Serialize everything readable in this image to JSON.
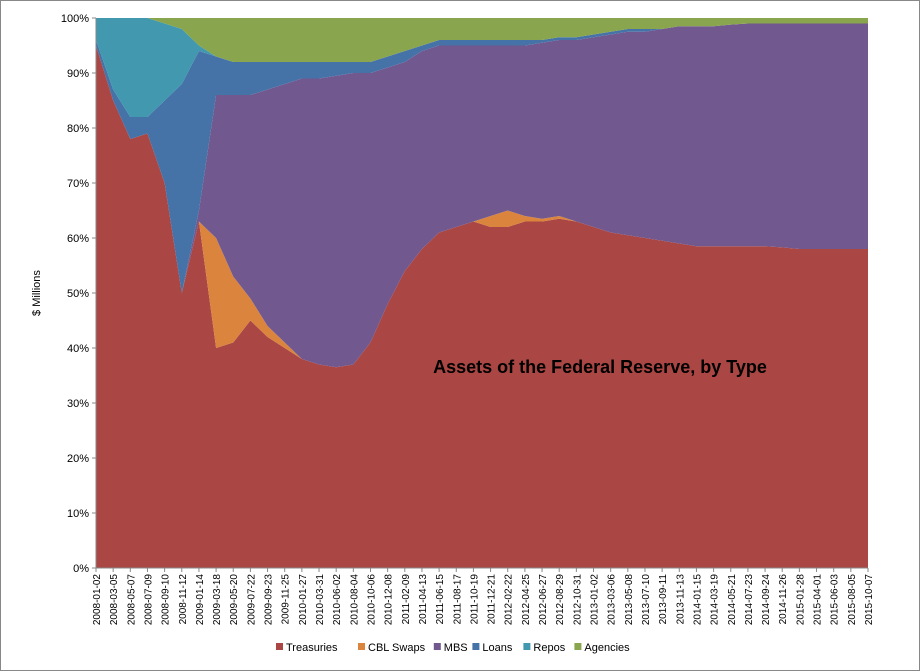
{
  "chart_data": {
    "type": "stacked_area",
    "title": "Assets of the Federal Reserve, by Type",
    "y_label": "$ Millions",
    "categories": [
      "2008-01-02",
      "2008-03-05",
      "2008-05-07",
      "2008-07-09",
      "2008-09-10",
      "2008-11-12",
      "2009-01-14",
      "2009-03-18",
      "2009-05-20",
      "2009-07-22",
      "2009-09-23",
      "2009-11-25",
      "2010-01-27",
      "2010-03-31",
      "2010-06-02",
      "2010-08-04",
      "2010-10-06",
      "2010-12-08",
      "2011-02-09",
      "2011-04-13",
      "2011-06-15",
      "2011-08-17",
      "2011-10-19",
      "2011-12-21",
      "2012-02-22",
      "2012-04-25",
      "2012-06-27",
      "2012-08-29",
      "2012-10-31",
      "2013-01-02",
      "2013-03-06",
      "2013-05-08",
      "2013-07-10",
      "2013-09-11",
      "2013-11-13",
      "2014-01-15",
      "2014-03-19",
      "2014-05-21",
      "2014-07-23",
      "2014-09-24",
      "2014-11-26",
      "2015-01-28",
      "2015-04-01",
      "2015-06-03",
      "2015-08-05",
      "2015-10-07"
    ],
    "series": [
      {
        "name": "Treasuries",
        "color": "#aa4643",
        "values": [
          95,
          85,
          78,
          79,
          70,
          50,
          63,
          40,
          41,
          45,
          42,
          40,
          38,
          37,
          36.5,
          37,
          41,
          48,
          54,
          58,
          61,
          62,
          63,
          62,
          62,
          63,
          63,
          63.5,
          63,
          62,
          61,
          60.5,
          60,
          59.5,
          59,
          58.5,
          58.5,
          58.5,
          58.5,
          58.5,
          58.3,
          58,
          58,
          58,
          58,
          58
        ]
      },
      {
        "name": "CBL Swaps",
        "color": "#db843d",
        "values": [
          0,
          0,
          0,
          0,
          0,
          0,
          0,
          20,
          12,
          4,
          2,
          1,
          0,
          0,
          0,
          0,
          0,
          0,
          0,
          0,
          0,
          0,
          0,
          2,
          3,
          1,
          0.5,
          0.5,
          0,
          0,
          0,
          0,
          0,
          0,
          0,
          0,
          0,
          0,
          0,
          0,
          0,
          0,
          0,
          0,
          0,
          0
        ]
      },
      {
        "name": "MBS",
        "color": "#71588f",
        "values": [
          0,
          0,
          0,
          0,
          0,
          0,
          2,
          26,
          33,
          37,
          43,
          47,
          51,
          52,
          53,
          53,
          49,
          43,
          38,
          36,
          34,
          33,
          32,
          31,
          30,
          31,
          32,
          32,
          33,
          34.5,
          36,
          37,
          37.5,
          38.5,
          39.5,
          40,
          40,
          40.3,
          40.5,
          40.5,
          40.7,
          41,
          41,
          41,
          41,
          41
        ]
      },
      {
        "name": "Loans",
        "color": "#4572a7",
        "values": [
          1,
          2,
          4,
          3,
          15,
          38,
          29,
          7,
          6,
          6,
          5,
          4,
          3,
          3,
          2.5,
          2,
          2,
          2,
          2,
          1,
          1,
          1,
          1,
          1,
          1,
          1,
          0.5,
          0.5,
          0.5,
          0.5,
          0.5,
          0.5,
          0.5,
          0,
          0,
          0,
          0,
          0,
          0,
          0,
          0,
          0,
          0,
          0,
          0,
          0
        ]
      },
      {
        "name": "Repos",
        "color": "#4198af",
        "values": [
          4,
          13,
          18,
          18,
          14,
          10,
          1,
          0,
          0,
          0,
          0,
          0,
          0,
          0,
          0,
          0,
          0,
          0,
          0,
          0,
          0,
          0,
          0,
          0,
          0,
          0,
          0,
          0,
          0,
          0,
          0,
          0,
          0,
          0,
          0,
          0,
          0,
          0,
          0,
          0,
          0,
          0,
          0,
          0,
          0,
          0
        ]
      },
      {
        "name": "Agencies",
        "color": "#89a54e",
        "values": [
          0,
          0,
          0,
          0,
          1,
          2,
          5,
          7,
          8,
          8,
          8,
          8,
          8,
          8,
          8,
          8,
          8,
          7,
          6,
          5,
          4,
          4,
          4,
          4,
          4,
          4,
          4,
          3.5,
          3.5,
          3,
          2.5,
          2,
          2,
          2,
          1.5,
          1.5,
          1.5,
          1.2,
          1,
          1,
          1,
          1,
          1,
          1,
          1,
          1
        ]
      }
    ],
    "ylim": [
      0,
      100
    ],
    "yticks": [
      {
        "value": 0,
        "label": "0%"
      },
      {
        "value": 10,
        "label": "10%"
      },
      {
        "value": 20,
        "label": "20%"
      },
      {
        "value": 30,
        "label": "30%"
      },
      {
        "value": 40,
        "label": "40%"
      },
      {
        "value": 50,
        "label": "50%"
      },
      {
        "value": 60,
        "label": "60%"
      },
      {
        "value": 70,
        "label": "70%"
      },
      {
        "value": 80,
        "label": "80%"
      },
      {
        "value": 90,
        "label": "90%"
      },
      {
        "value": 100,
        "label": "100%"
      }
    ],
    "legend": "bottom"
  }
}
